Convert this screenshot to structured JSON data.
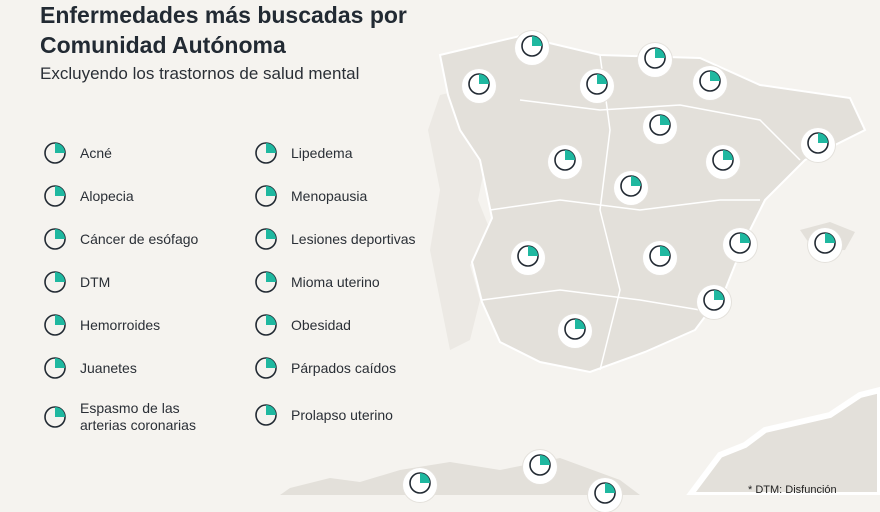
{
  "header": {
    "title": "Enfermedades más buscadas por Comunidad Autónoma",
    "subtitle": "Excluyendo los trastornos de salud mental"
  },
  "colors": {
    "accent": "#1fb8a0",
    "ink": "#222a33",
    "land": "#e3e0da",
    "background": "#f5f3ef"
  },
  "legend": [
    {
      "label": "Acné",
      "icon": "face-acne-icon"
    },
    {
      "label": "Alopecia",
      "icon": "head-alopecia-icon"
    },
    {
      "label": "Cáncer de esófago",
      "icon": "esophagus-icon"
    },
    {
      "label": "DTM",
      "icon": "jaw-icon"
    },
    {
      "label": "Hemorroides",
      "icon": "intestine-icon"
    },
    {
      "label": "Juanetes",
      "icon": "foot-icon"
    },
    {
      "label": "Espasmo de las arterias coronarias",
      "icon": "heart-icon"
    },
    {
      "label": "Lipedema",
      "icon": "legs-icon"
    },
    {
      "label": "Menopausia",
      "icon": "female-symbol-icon"
    },
    {
      "label": "Lesiones deportivas",
      "icon": "bandage-icon"
    },
    {
      "label": "Mioma uterino",
      "icon": "uterus-icon"
    },
    {
      "label": "Obesidad",
      "icon": "scale-icon"
    },
    {
      "label": "Párpados caídos",
      "icon": "eye-icon"
    },
    {
      "label": "Prolapso uterino",
      "icon": "prolapse-icon"
    }
  ],
  "footnote": "* DTM: Disfunción"
}
